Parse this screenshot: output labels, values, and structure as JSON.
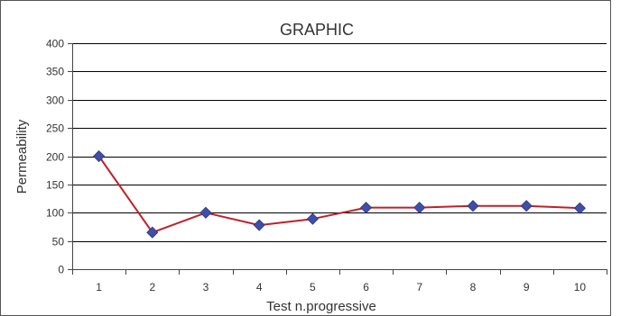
{
  "chart_data": {
    "type": "line",
    "title": "GRAPHIC",
    "xlabel": "Test n.progressive",
    "ylabel": "Permeability",
    "categories": [
      "1",
      "2",
      "3",
      "4",
      "5",
      "6",
      "7",
      "8",
      "9",
      "10"
    ],
    "series": [
      {
        "values": [
          200,
          65,
          100,
          78,
          89,
          109,
          109,
          112,
          112,
          108
        ]
      }
    ],
    "ylim": [
      0,
      400
    ],
    "yticks": [
      0,
      50,
      100,
      150,
      200,
      250,
      300,
      350,
      400
    ],
    "grid": true,
    "legend": "none",
    "colors": {
      "line": "#c0202a",
      "marker": "#3f4fa8",
      "grid": "#000000",
      "axis": "#444444"
    }
  }
}
